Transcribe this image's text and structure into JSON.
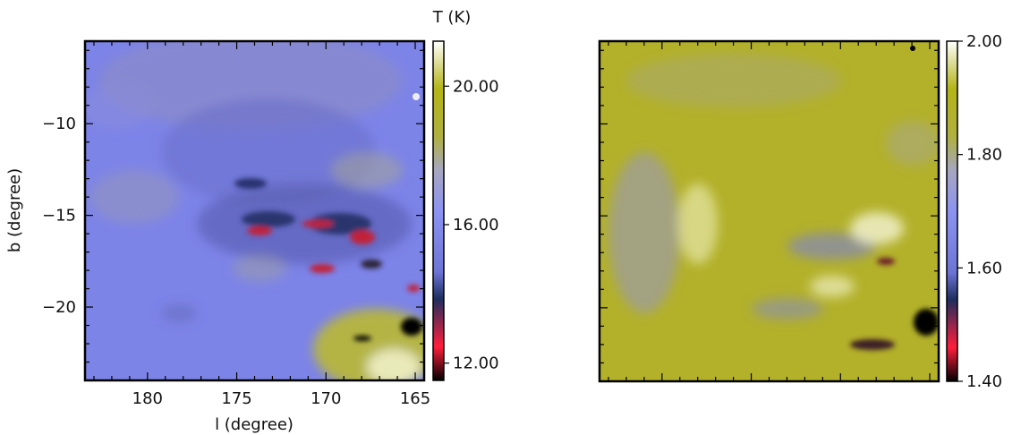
{
  "colors": {
    "colorbar_stops": [
      "#000000",
      "#ff1e3c",
      "#1e2e5e",
      "#6d74d6",
      "#8c93f0",
      "#a6a6c0",
      "#b0b040",
      "#b4b418",
      "#ffffff"
    ],
    "background_left": "#7d84e8",
    "background_right": "#b3b12a",
    "frame": "#000000"
  },
  "chart_data": [
    {
      "type": "heatmap",
      "title": "",
      "xlabel": "l (degree)",
      "ylabel": "b (degree)",
      "xlim": [
        183.5,
        164.5
      ],
      "ylim": [
        -24,
        -5.5
      ],
      "x_ticks": [
        180,
        175,
        170,
        165
      ],
      "x_tick_labels": [
        "180",
        "175",
        "170",
        "165"
      ],
      "y_ticks": [
        -10,
        -15,
        -20
      ],
      "y_tick_labels": [
        "-10",
        "-15",
        "-20"
      ],
      "colorbar": {
        "label": "T (K)",
        "range": [
          11.5,
          21.3
        ],
        "ticks": [
          12,
          16,
          20
        ],
        "tick_labels": [
          "12.00",
          "16.00",
          "20.00"
        ]
      }
    },
    {
      "type": "heatmap",
      "title": "",
      "xlabel": "",
      "ylabel": "",
      "xlim": [
        183.5,
        164.5
      ],
      "ylim": [
        -24,
        -5.5
      ],
      "colorbar": {
        "label": "",
        "range": [
          1.4,
          2.0
        ],
        "ticks": [
          1.4,
          1.6,
          1.8,
          2.0
        ],
        "tick_labels": [
          "1.40",
          "1.60",
          "1.80",
          "2.00"
        ]
      }
    }
  ]
}
